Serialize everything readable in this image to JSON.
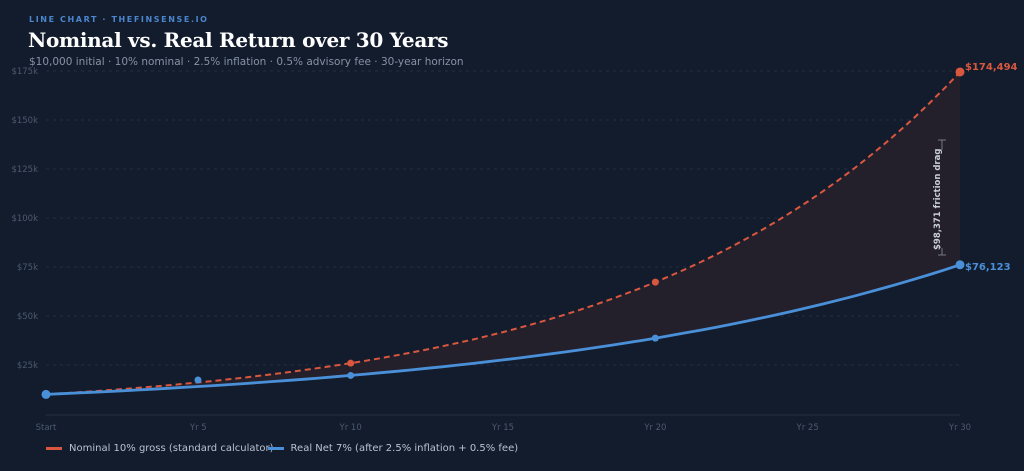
{
  "header": {
    "eyebrow": "LINE CHART · THEFINSENSE.IO",
    "title": "Nominal vs. Real Return over 30 Years",
    "subtitle": "$10,000 initial · 10% nominal · 2.5% inflation · 0.5% advisory fee · 30-year horizon"
  },
  "colors": {
    "background": "#131c2c",
    "nominal": "#d9573f",
    "real": "#4a90d9",
    "gap_fill": "#231f2b",
    "grid": "#2a3548",
    "axis_text": "#4b5a70"
  },
  "legend": {
    "nominal": "Nominal 10% gross (standard calculator)",
    "real": "Real Net 7% (after 2.5% inflation + 0.5% fee)"
  },
  "annotations": {
    "nominal_end": "$174,494",
    "real_end": "$76,123",
    "friction_drag": "$98,371 friction drag"
  },
  "chart_data": {
    "type": "line",
    "title": "Nominal vs. Real Return over 30 Years",
    "subtitle": "$10,000 initial · 10% nominal · 2.5% inflation · 0.5% advisory fee · 30-year horizon",
    "xlabel": "",
    "ylabel": "",
    "x": [
      0,
      5,
      10,
      15,
      20,
      25,
      30
    ],
    "x_tick_labels": [
      "Start",
      "Yr 5",
      "Yr 10",
      "Yr 15",
      "Yr 20",
      "Yr 25",
      "Yr 30"
    ],
    "y_tick_labels": [
      "$25k",
      "$50k",
      "$75k",
      "$100k",
      "$125k",
      "$150k",
      "$175k"
    ],
    "y_ticks": [
      25000,
      50000,
      75000,
      100000,
      125000,
      150000,
      175000
    ],
    "ylim": [
      0,
      175000
    ],
    "grid": true,
    "legend_position": "bottom",
    "series": [
      {
        "name": "Nominal 10% gross (standard calculator)",
        "style": "dashed",
        "color": "#d9573f",
        "values": [
          10000,
          16105,
          25937,
          41772,
          67275,
          108347,
          174494
        ],
        "markers_at": [
          10,
          20,
          30
        ]
      },
      {
        "name": "Real Net 7% (after 2.5% inflation + 0.5% fee)",
        "style": "solid",
        "color": "#4a90d9",
        "values": [
          10000,
          14026,
          19672,
          27590,
          38697,
          54274,
          76123
        ],
        "markers_at": [
          0,
          10,
          20,
          30
        ]
      }
    ],
    "annotations": [
      {
        "x": 30,
        "text": "$174,494",
        "series": "nominal"
      },
      {
        "x": 30,
        "text": "$76,123",
        "series": "real"
      },
      {
        "x": 29.4,
        "text": "$98,371 friction drag",
        "orientation": "vertical"
      }
    ]
  }
}
